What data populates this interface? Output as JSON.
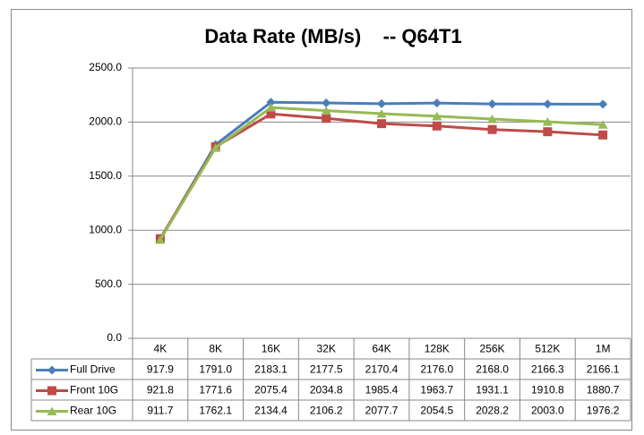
{
  "chart_data": {
    "type": "line",
    "title": "Data Rate (MB/s)    -- Q64T1",
    "categories": [
      "4K",
      "8K",
      "16K",
      "32K",
      "64K",
      "128K",
      "256K",
      "512K",
      "1M"
    ],
    "series": [
      {
        "name": "Full Drive",
        "color": "#4a7ebb",
        "marker": "diamond",
        "values": [
          917.9,
          1791.0,
          2183.1,
          2177.5,
          2170.4,
          2176.0,
          2168.0,
          2166.3,
          2166.1
        ],
        "value_labels": [
          "917.9",
          "1791.0",
          "2183.1",
          "2177.5",
          "2170.4",
          "2176.0",
          "2168.0",
          "2166.3",
          "2166.1"
        ]
      },
      {
        "name": "Front 10G",
        "color": "#be4b48",
        "marker": "square",
        "values": [
          921.8,
          1771.6,
          2075.4,
          2034.8,
          1985.4,
          1963.7,
          1931.1,
          1910.8,
          1880.7
        ],
        "value_labels": [
          "921.8",
          "1771.6",
          "2075.4",
          "2034.8",
          "1985.4",
          "1963.7",
          "1931.1",
          "1910.8",
          "1880.7"
        ]
      },
      {
        "name": "Rear 10G",
        "color": "#98b954",
        "marker": "triangle",
        "values": [
          911.7,
          1762.1,
          2134.4,
          2106.2,
          2077.7,
          2054.5,
          2028.2,
          2003.0,
          1976.2
        ],
        "value_labels": [
          "911.7",
          "1762.1",
          "2134.4",
          "2106.2",
          "2077.7",
          "2054.5",
          "2028.2",
          "2003.0",
          "1976.2"
        ]
      }
    ],
    "ylim": [
      0,
      2500
    ],
    "yticks": [
      {
        "value": 0,
        "label": "0.0"
      },
      {
        "value": 500,
        "label": "500.0"
      },
      {
        "value": 1000,
        "label": "1000.0"
      },
      {
        "value": 1500,
        "label": "1500.0"
      },
      {
        "value": 2000,
        "label": "2000.0"
      },
      {
        "value": 2500,
        "label": "2500.0"
      }
    ],
    "grid": true
  }
}
